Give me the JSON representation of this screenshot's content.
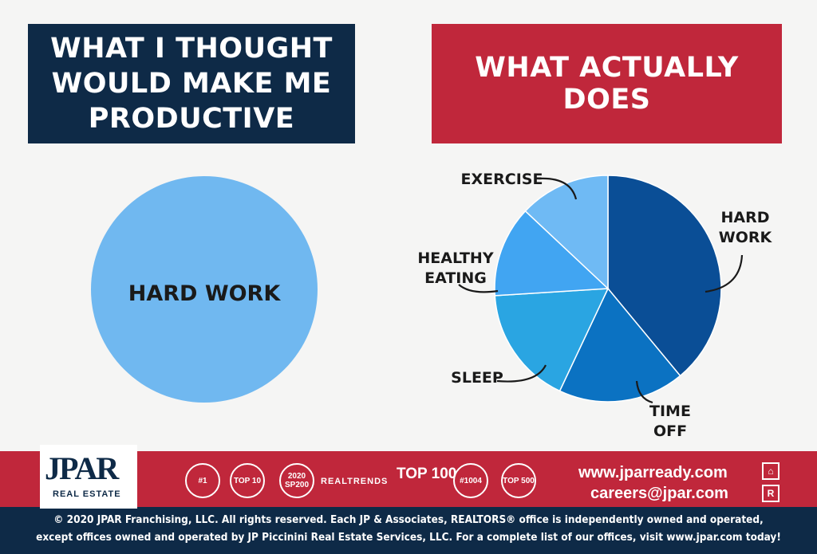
{
  "left_panel": {
    "title": "WHAT I THOUGHT WOULD MAKE ME PRODUCTIVE"
  },
  "right_panel": {
    "title": "WHAT ACTUALLY DOES"
  },
  "colors": {
    "navy": "#0e2a47",
    "red": "#c0273b",
    "left_pie": "#70b8f0",
    "hard_work": "#0a4e96",
    "time_off": "#0b72c2",
    "sleep": "#2aa5e2",
    "healthy_eating": "#41a5f2",
    "exercise": "#6fbaf4"
  },
  "chart_data": [
    {
      "type": "pie",
      "slices": [
        {
          "label": "HARD WORK",
          "value": 100
        }
      ]
    },
    {
      "type": "pie",
      "slices": [
        {
          "label": "HARD WORK",
          "lines": [
            "HARD",
            "WORK"
          ],
          "value": 39
        },
        {
          "label": "TIME OFF",
          "lines": [
            "TIME",
            "OFF"
          ],
          "value": 18
        },
        {
          "label": "SLEEP",
          "lines": [
            "SLEEP"
          ],
          "value": 17
        },
        {
          "label": "HEALTHY EATING",
          "lines": [
            "HEALTHY",
            "EATING"
          ],
          "value": 13
        },
        {
          "label": "EXERCISE",
          "lines": [
            "EXERCISE"
          ],
          "value": 13
        }
      ]
    }
  ],
  "footer": {
    "logo": "JPAR",
    "logo_sub": "REAL ESTATE",
    "badges": [
      "#1",
      "TOP 10",
      "2020 SP200",
      "REALTRENDS",
      "TOP 100",
      "#1004",
      "TOP 500"
    ],
    "website": "www.jparready.com",
    "email": "careers@jpar.com",
    "legal_line1": "© 2020 JPAR Franchising, LLC. All rights reserved. Each JP & Associates, REALTORS® office is independently owned and operated,",
    "legal_line2": "except offices owned and operated by JP Piccinini Real Estate Services, LLC. For a complete list of our offices, visit www.jpar.com today!"
  }
}
